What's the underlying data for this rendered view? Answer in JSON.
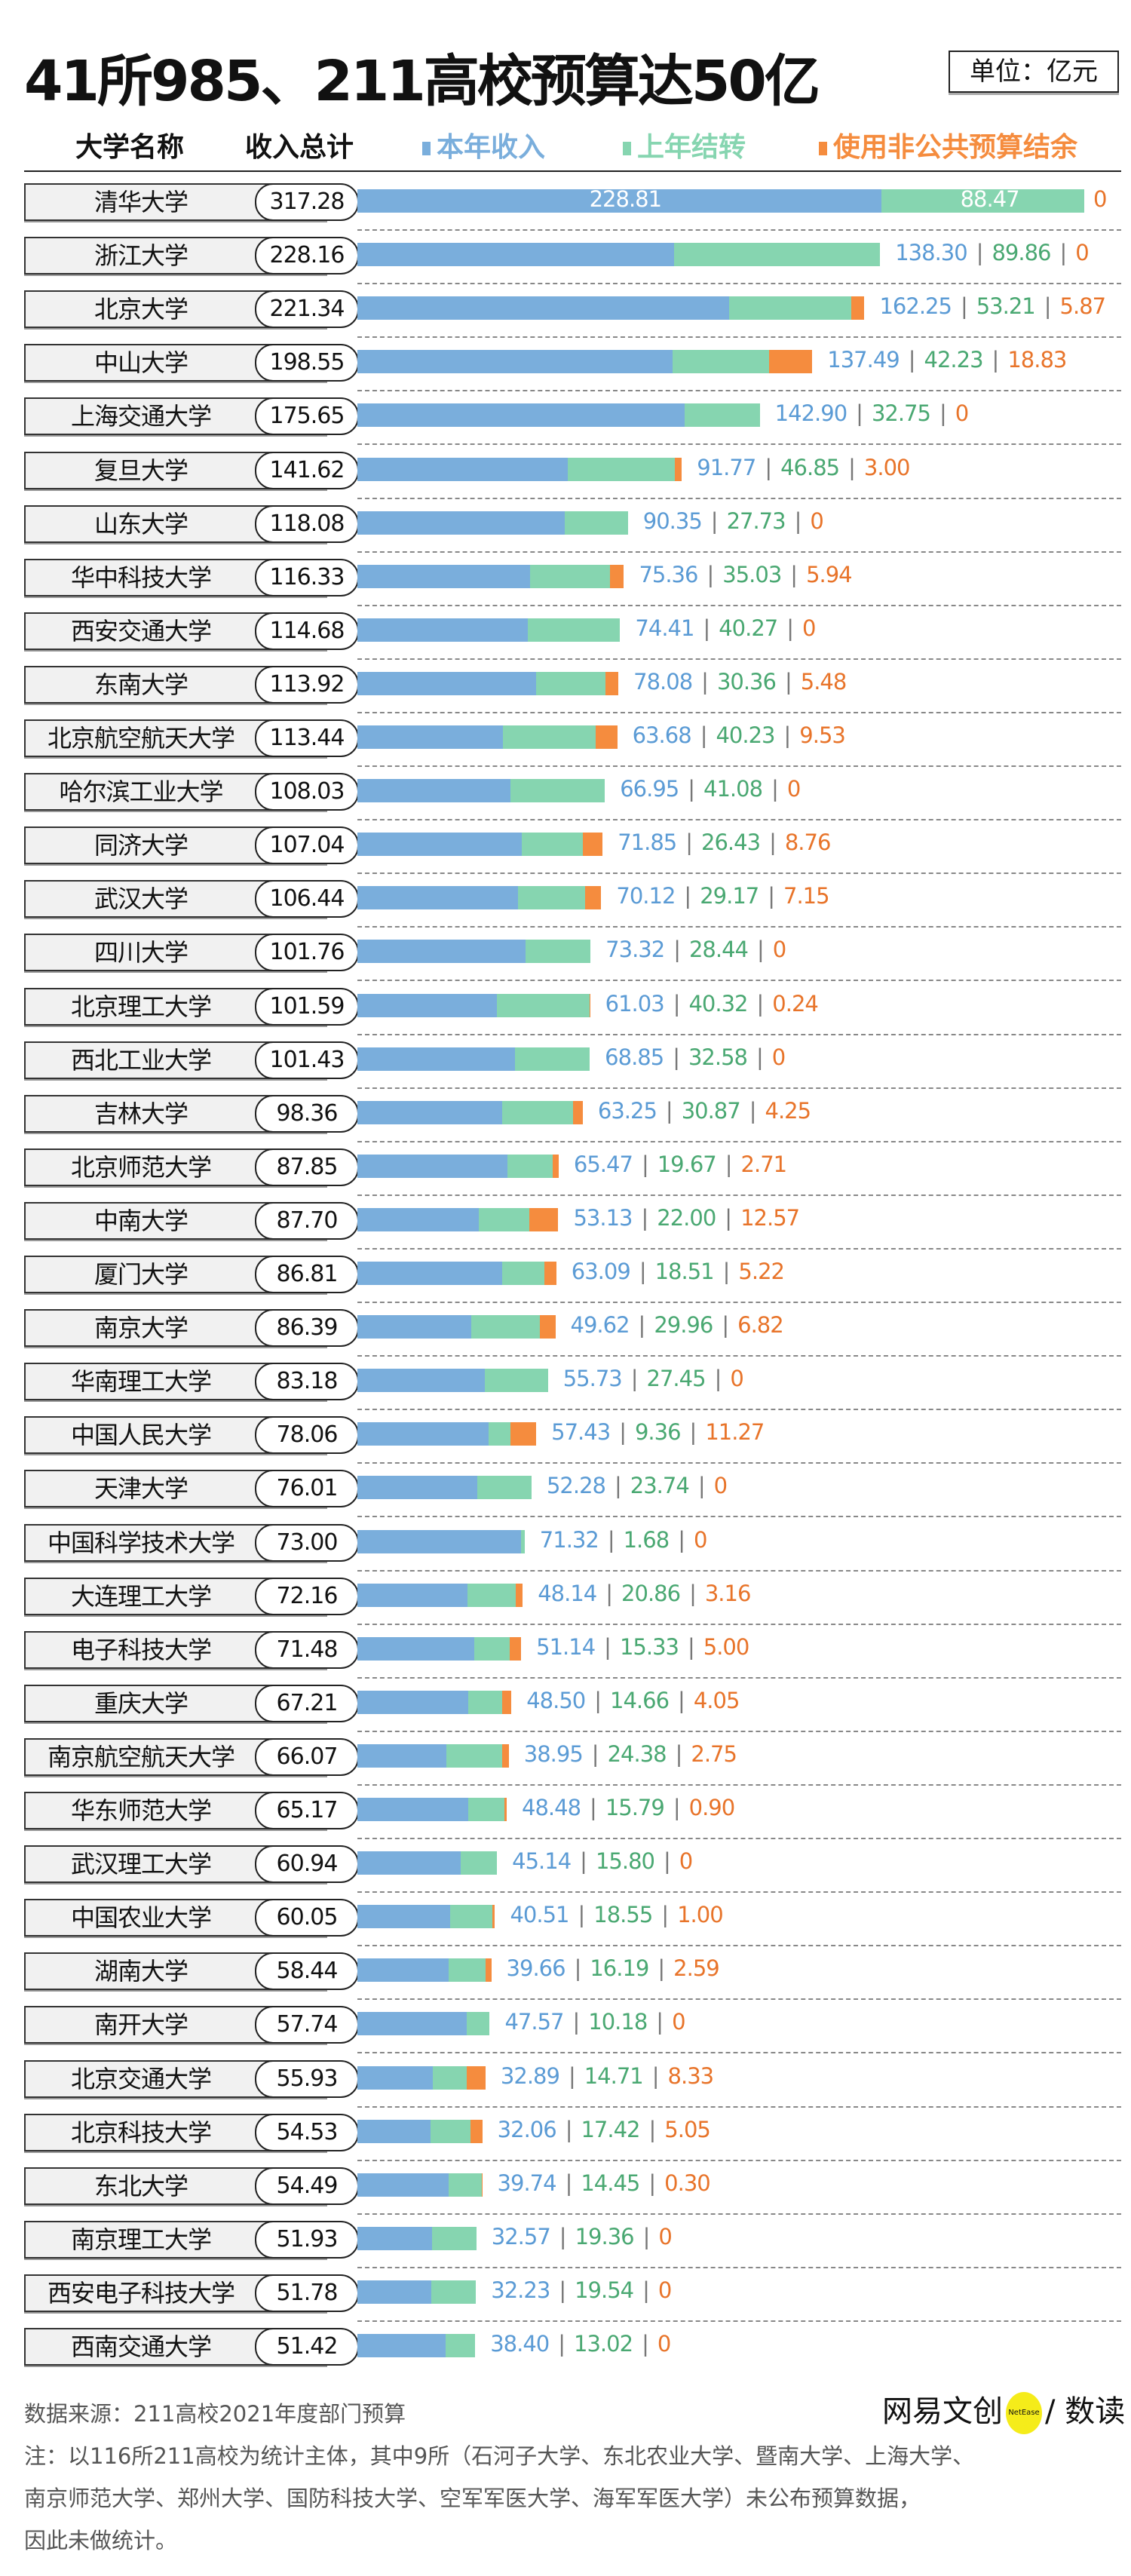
{
  "title": "41所985、211高校预算达50亿",
  "unit": "单位：亿元",
  "header": {
    "name_col": "大学名称",
    "total_col": "收入总计"
  },
  "colors": {
    "current": "#7aaedc",
    "carryover": "#86d5b0",
    "nonpublic": "#f58c3e",
    "current_text": "#5b9bd5",
    "carryover_text": "#4aa872",
    "nonpublic_text": "#e8742a"
  },
  "chart_data": {
    "type": "bar",
    "orientation": "horizontal",
    "stacked": true,
    "legend_placement": "top",
    "series_names": [
      "本年收入",
      "上年结转",
      "使用非公共预算结余"
    ],
    "rows": [
      {
        "name": "清华大学",
        "total": "317.28",
        "v": [
          228.81,
          88.47,
          0
        ]
      },
      {
        "name": "浙江大学",
        "total": "228.16",
        "v": [
          138.3,
          89.86,
          0
        ]
      },
      {
        "name": "北京大学",
        "total": "221.34",
        "v": [
          162.25,
          53.21,
          5.87
        ]
      },
      {
        "name": "中山大学",
        "total": "198.55",
        "v": [
          137.49,
          42.23,
          18.83
        ]
      },
      {
        "name": "上海交通大学",
        "total": "175.65",
        "v": [
          142.9,
          32.75,
          0
        ]
      },
      {
        "name": "复旦大学",
        "total": "141.62",
        "v": [
          91.77,
          46.85,
          3.0
        ]
      },
      {
        "name": "山东大学",
        "total": "118.08",
        "v": [
          90.35,
          27.73,
          0
        ]
      },
      {
        "name": "华中科技大学",
        "total": "116.33",
        "v": [
          75.36,
          35.03,
          5.94
        ]
      },
      {
        "name": "西安交通大学",
        "total": "114.68",
        "v": [
          74.41,
          40.27,
          0
        ]
      },
      {
        "name": "东南大学",
        "total": "113.92",
        "v": [
          78.08,
          30.36,
          5.48
        ]
      },
      {
        "name": "北京航空航天大学",
        "total": "113.44",
        "v": [
          63.68,
          40.23,
          9.53
        ]
      },
      {
        "name": "哈尔滨工业大学",
        "total": "108.03",
        "v": [
          66.95,
          41.08,
          0
        ]
      },
      {
        "name": "同济大学",
        "total": "107.04",
        "v": [
          71.85,
          26.43,
          8.76
        ]
      },
      {
        "name": "武汉大学",
        "total": "106.44",
        "v": [
          70.12,
          29.17,
          7.15
        ]
      },
      {
        "name": "四川大学",
        "total": "101.76",
        "v": [
          73.32,
          28.44,
          0
        ]
      },
      {
        "name": "北京理工大学",
        "total": "101.59",
        "v": [
          61.03,
          40.32,
          0.24
        ]
      },
      {
        "name": "西北工业大学",
        "total": "101.43",
        "v": [
          68.85,
          32.58,
          0
        ]
      },
      {
        "name": "吉林大学",
        "total": "98.36",
        "v": [
          63.25,
          30.87,
          4.25
        ]
      },
      {
        "name": "北京师范大学",
        "total": "87.85",
        "v": [
          65.47,
          19.67,
          2.71
        ]
      },
      {
        "name": "中南大学",
        "total": "87.70",
        "v": [
          53.13,
          22.0,
          12.57
        ]
      },
      {
        "name": "厦门大学",
        "total": "86.81",
        "v": [
          63.09,
          18.51,
          5.22
        ]
      },
      {
        "name": "南京大学",
        "total": "86.39",
        "v": [
          49.62,
          29.96,
          6.82
        ]
      },
      {
        "name": "华南理工大学",
        "total": "83.18",
        "v": [
          55.73,
          27.45,
          0
        ]
      },
      {
        "name": "中国人民大学",
        "total": "78.06",
        "v": [
          57.43,
          9.36,
          11.27
        ]
      },
      {
        "name": "天津大学",
        "total": "76.01",
        "v": [
          52.28,
          23.74,
          0
        ]
      },
      {
        "name": "中国科学技术大学",
        "total": "73.00",
        "v": [
          71.32,
          1.68,
          0
        ]
      },
      {
        "name": "大连理工大学",
        "total": "72.16",
        "v": [
          48.14,
          20.86,
          3.16
        ]
      },
      {
        "name": "电子科技大学",
        "total": "71.48",
        "v": [
          51.14,
          15.33,
          5.0
        ]
      },
      {
        "name": "重庆大学",
        "total": "67.21",
        "v": [
          48.5,
          14.66,
          4.05
        ]
      },
      {
        "name": "南京航空航天大学",
        "total": "66.07",
        "v": [
          38.95,
          24.38,
          2.75
        ]
      },
      {
        "name": "华东师范大学",
        "total": "65.17",
        "v": [
          48.48,
          15.79,
          0.9
        ]
      },
      {
        "name": "武汉理工大学",
        "total": "60.94",
        "v": [
          45.14,
          15.8,
          0
        ]
      },
      {
        "name": "中国农业大学",
        "total": "60.05",
        "v": [
          40.51,
          18.55,
          1.0
        ]
      },
      {
        "name": "湖南大学",
        "total": "58.44",
        "v": [
          39.66,
          16.19,
          2.59
        ]
      },
      {
        "name": "南开大学",
        "total": "57.74",
        "v": [
          47.57,
          10.18,
          0
        ]
      },
      {
        "name": "北京交通大学",
        "total": "55.93",
        "v": [
          32.89,
          14.71,
          8.33
        ]
      },
      {
        "name": "北京科技大学",
        "total": "54.53",
        "v": [
          32.06,
          17.42,
          5.05
        ]
      },
      {
        "name": "东北大学",
        "total": "54.49",
        "v": [
          39.74,
          14.45,
          0.3
        ]
      },
      {
        "name": "南京理工大学",
        "total": "51.93",
        "v": [
          32.57,
          19.36,
          0
        ]
      },
      {
        "name": "西安电子科技大学",
        "total": "51.78",
        "v": [
          32.23,
          19.54,
          0
        ]
      },
      {
        "name": "西南交通大学",
        "total": "51.42",
        "v": [
          38.4,
          13.02,
          0
        ]
      }
    ]
  },
  "footer": {
    "source": "数据来源：211高校2021年度部门预算",
    "note_lines": [
      "注：以116所211高校为统计主体，其中9所（石河子大学、东北农业大学、暨南大学、上海大学、",
      "南京师范大学、郑州大学、国防科技大学、空军军医大学、海军军医大学）未公布预算数据，",
      "因此未做统计。"
    ],
    "logo": {
      "left": "网易文创",
      "badge": "NetEase",
      "right": "/ 数读"
    }
  }
}
